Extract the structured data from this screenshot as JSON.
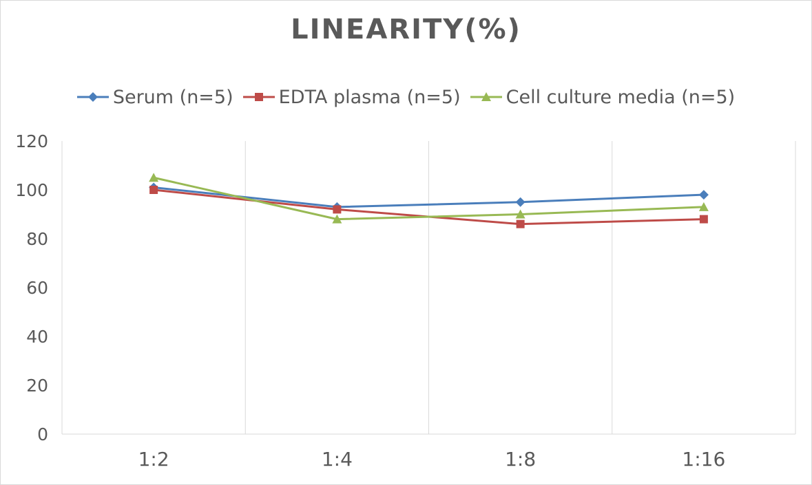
{
  "chart_data": {
    "type": "line",
    "title": "LINEARITY(%)",
    "categories": [
      "1:2",
      "1:4",
      "1:8",
      "1:16"
    ],
    "ylim": [
      0,
      120
    ],
    "yticks": [
      0,
      20,
      40,
      60,
      80,
      100,
      120
    ],
    "grid": "vertical",
    "legend_position": "top",
    "series": [
      {
        "name": "Serum (n=5)",
        "values": [
          101,
          93,
          95,
          98
        ],
        "color": "#4a7ebb",
        "marker": "diamond"
      },
      {
        "name": "EDTA plasma (n=5)",
        "values": [
          100,
          92,
          86,
          88
        ],
        "color": "#be4b48",
        "marker": "square"
      },
      {
        "name": "Cell culture media (n=5)",
        "values": [
          105,
          88,
          90,
          93
        ],
        "color": "#98b954",
        "marker": "triangle"
      }
    ]
  }
}
